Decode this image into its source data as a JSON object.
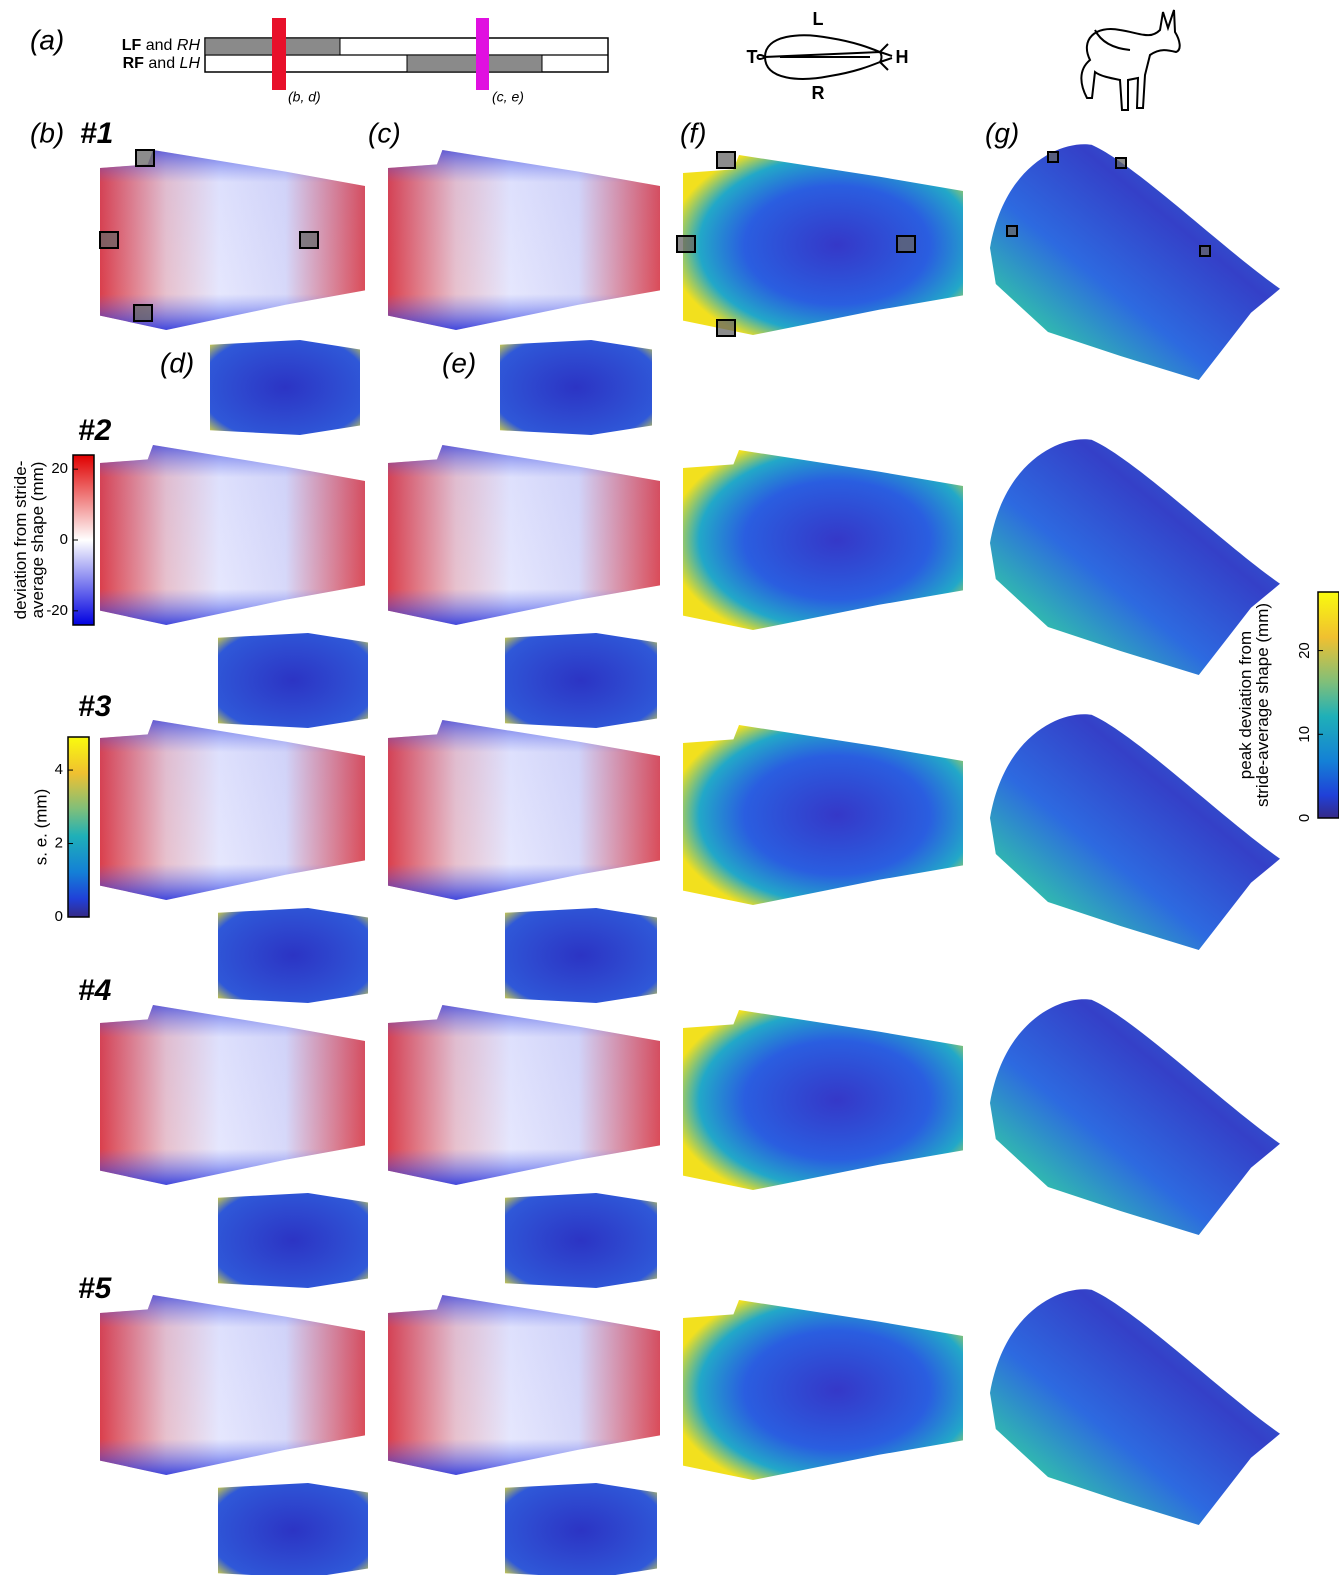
{
  "panel_labels": {
    "a": "(a)",
    "b": "(b)",
    "c": "(c)",
    "d": "(d)",
    "e": "(e)",
    "f": "(f)",
    "g": "(g)"
  },
  "gait": {
    "rows": [
      [
        "LF",
        "and",
        "RH"
      ],
      [
        "RF",
        "and",
        "LH"
      ]
    ],
    "markers": [
      "(b, d)",
      "(c, e)"
    ]
  },
  "orientation": {
    "left": "L",
    "right": "R",
    "tail": "T",
    "head": "H"
  },
  "rows": [
    "#1",
    "#2",
    "#3",
    "#4",
    "#5"
  ],
  "colorbars": [
    {
      "label_lines": [
        "deviation from stride-",
        "average shape (mm)"
      ],
      "ticks": [
        20,
        0,
        -20
      ]
    },
    {
      "label_lines": [
        "s. e. (mm)"
      ],
      "ticks": [
        4,
        2,
        0
      ]
    },
    {
      "label_lines": [
        "peak deviation from",
        "stride-average shape (mm)"
      ],
      "ticks": [
        20,
        10,
        0
      ]
    }
  ]
}
